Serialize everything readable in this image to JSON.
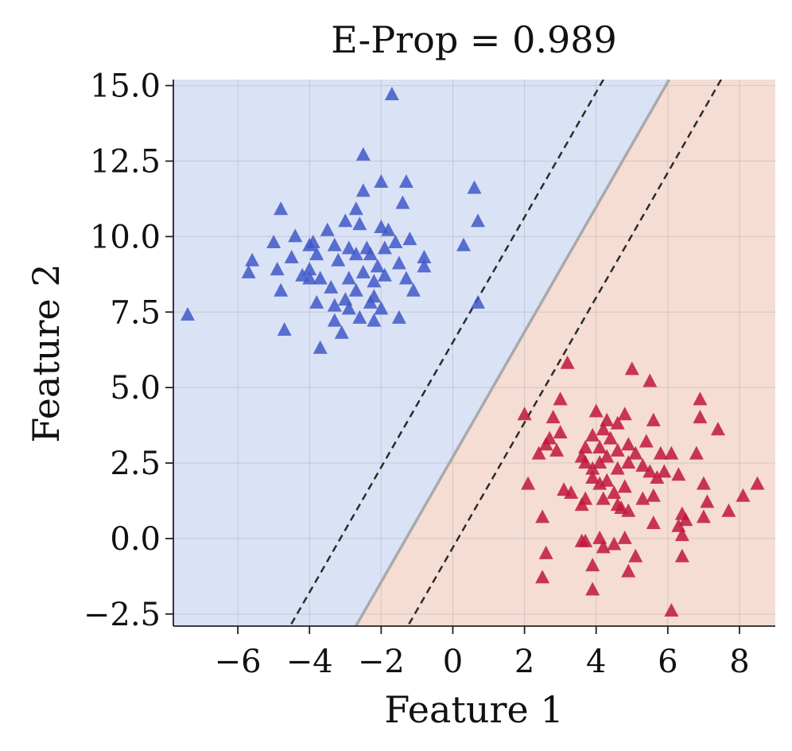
{
  "chart_data": {
    "type": "scatter",
    "title": "E-Prop = 0.989",
    "xlabel": "Feature 1",
    "ylabel": "Feature 2",
    "xlim": [
      -7.8,
      9.0
    ],
    "ylim": [
      -2.9,
      15.2
    ],
    "xticks": [
      -6,
      -4,
      -2,
      0,
      2,
      4,
      6,
      8
    ],
    "xtick_labels": [
      "−6",
      "−4",
      "−2",
      "0",
      "2",
      "4",
      "6",
      "8"
    ],
    "yticks": [
      -2.5,
      0.0,
      2.5,
      5.0,
      7.5,
      10.0,
      12.5,
      15.0
    ],
    "ytick_labels": [
      "−2.5",
      "0.0",
      "2.5",
      "5.0",
      "7.5",
      "10.0",
      "12.5",
      "15.0"
    ],
    "grid": true,
    "marker": "triangle-up",
    "region_colors": {
      "blue": "#dae2f5",
      "red": "#f5ddd4"
    },
    "decision_boundary": {
      "slope": 2.07,
      "intercept": 2.7,
      "color": "#a9a9a9"
    },
    "margins": [
      {
        "slope": 2.07,
        "intercept": 6.5
      },
      {
        "slope": 2.07,
        "intercept": -0.3
      }
    ],
    "series": [
      {
        "color": "#4058c8",
        "points": [
          [
            -1.7,
            14.7
          ],
          [
            -2.5,
            12.7
          ],
          [
            -2.0,
            11.8
          ],
          [
            -1.3,
            11.8
          ],
          [
            -2.5,
            11.5
          ],
          [
            0.6,
            11.6
          ],
          [
            -2.7,
            10.9
          ],
          [
            -1.4,
            11.1
          ],
          [
            -4.8,
            10.9
          ],
          [
            0.7,
            10.5
          ],
          [
            -3.0,
            10.5
          ],
          [
            -2.6,
            10.4
          ],
          [
            -2.0,
            10.3
          ],
          [
            -1.8,
            10.2
          ],
          [
            -3.5,
            10.2
          ],
          [
            -4.4,
            10.0
          ],
          [
            -3.9,
            9.8
          ],
          [
            -5.0,
            9.8
          ],
          [
            -1.2,
            9.9
          ],
          [
            -1.6,
            9.8
          ],
          [
            -3.3,
            9.7
          ],
          [
            -2.9,
            9.6
          ],
          [
            -2.4,
            9.6
          ],
          [
            -4.0,
            9.7
          ],
          [
            0.3,
            9.7
          ],
          [
            -1.9,
            9.6
          ],
          [
            -2.3,
            9.4
          ],
          [
            -2.7,
            9.4
          ],
          [
            -3.8,
            9.4
          ],
          [
            -4.5,
            9.3
          ],
          [
            -5.6,
            9.2
          ],
          [
            -0.8,
            9.3
          ],
          [
            -3.2,
            9.2
          ],
          [
            -1.5,
            9.1
          ],
          [
            -2.1,
            9.0
          ],
          [
            -4.0,
            8.9
          ],
          [
            -4.9,
            8.9
          ],
          [
            -0.8,
            9.0
          ],
          [
            -2.5,
            8.8
          ],
          [
            -2.9,
            8.6
          ],
          [
            -1.9,
            8.7
          ],
          [
            -4.2,
            8.7
          ],
          [
            -5.7,
            8.8
          ],
          [
            -3.7,
            8.6
          ],
          [
            -1.3,
            8.6
          ],
          [
            -4.0,
            8.6
          ],
          [
            -2.2,
            8.5
          ],
          [
            -3.4,
            8.3
          ],
          [
            -2.7,
            8.2
          ],
          [
            -4.8,
            8.2
          ],
          [
            -1.1,
            8.2
          ],
          [
            -2.2,
            8.0
          ],
          [
            -3.0,
            7.9
          ],
          [
            -2.3,
            7.8
          ],
          [
            -3.8,
            7.8
          ],
          [
            -3.3,
            7.7
          ],
          [
            -2.0,
            7.6
          ],
          [
            -2.9,
            7.6
          ],
          [
            0.7,
            7.8
          ],
          [
            -7.4,
            7.4
          ],
          [
            -1.5,
            7.3
          ],
          [
            -2.6,
            7.3
          ],
          [
            -2.2,
            7.2
          ],
          [
            -3.3,
            7.2
          ],
          [
            -4.7,
            6.9
          ],
          [
            -3.1,
            6.8
          ],
          [
            -3.7,
            6.3
          ]
        ]
      },
      {
        "color": "#bf1838",
        "points": [
          [
            3.2,
            5.8
          ],
          [
            5.0,
            5.6
          ],
          [
            5.5,
            5.2
          ],
          [
            3.0,
            4.6
          ],
          [
            6.9,
            4.6
          ],
          [
            4.0,
            4.2
          ],
          [
            4.8,
            4.1
          ],
          [
            2.0,
            4.1
          ],
          [
            4.3,
            3.9
          ],
          [
            2.8,
            4.0
          ],
          [
            5.6,
            3.9
          ],
          [
            6.9,
            4.0
          ],
          [
            7.4,
            3.6
          ],
          [
            4.6,
            3.8
          ],
          [
            4.2,
            3.6
          ],
          [
            3.0,
            3.5
          ],
          [
            3.9,
            3.4
          ],
          [
            4.4,
            3.3
          ],
          [
            5.4,
            3.2
          ],
          [
            2.6,
            3.1
          ],
          [
            2.7,
            3.3
          ],
          [
            4.9,
            3.1
          ],
          [
            3.7,
            3.0
          ],
          [
            4.1,
            3.0
          ],
          [
            2.4,
            2.8
          ],
          [
            2.9,
            2.9
          ],
          [
            4.6,
            2.9
          ],
          [
            5.1,
            2.8
          ],
          [
            5.8,
            2.8
          ],
          [
            6.1,
            2.8
          ],
          [
            3.6,
            2.7
          ],
          [
            4.3,
            2.7
          ],
          [
            6.8,
            2.8
          ],
          [
            3.7,
            2.5
          ],
          [
            4.1,
            2.5
          ],
          [
            4.9,
            2.5
          ],
          [
            5.3,
            2.4
          ],
          [
            3.9,
            2.3
          ],
          [
            4.6,
            2.3
          ],
          [
            5.5,
            2.2
          ],
          [
            5.9,
            2.2
          ],
          [
            3.9,
            2.0
          ],
          [
            4.3,
            1.9
          ],
          [
            5.7,
            2.0
          ],
          [
            6.3,
            2.1
          ],
          [
            2.1,
            1.8
          ],
          [
            4.1,
            1.8
          ],
          [
            4.8,
            1.7
          ],
          [
            7.0,
            1.8
          ],
          [
            8.5,
            1.8
          ],
          [
            3.1,
            1.6
          ],
          [
            3.3,
            1.5
          ],
          [
            4.5,
            1.5
          ],
          [
            5.6,
            1.4
          ],
          [
            3.7,
            1.3
          ],
          [
            4.2,
            1.3
          ],
          [
            5.3,
            1.3
          ],
          [
            7.1,
            1.2
          ],
          [
            8.1,
            1.4
          ],
          [
            3.6,
            1.1
          ],
          [
            4.6,
            1.1
          ],
          [
            4.7,
            1.0
          ],
          [
            4.9,
            0.9
          ],
          [
            7.7,
            0.9
          ],
          [
            6.4,
            0.8
          ],
          [
            6.5,
            0.6
          ],
          [
            2.5,
            0.7
          ],
          [
            5.6,
            0.5
          ],
          [
            7.0,
            0.7
          ],
          [
            6.3,
            0.4
          ],
          [
            6.4,
            0.1
          ],
          [
            4.1,
            0.0
          ],
          [
            4.8,
            0.0
          ],
          [
            3.6,
            -0.1
          ],
          [
            3.7,
            -0.1
          ],
          [
            4.5,
            -0.2
          ],
          [
            4.2,
            -0.3
          ],
          [
            2.6,
            -0.5
          ],
          [
            5.1,
            -0.6
          ],
          [
            6.4,
            -0.6
          ],
          [
            3.9,
            -0.9
          ],
          [
            4.9,
            -1.1
          ],
          [
            2.5,
            -1.3
          ],
          [
            3.9,
            -1.7
          ],
          [
            6.1,
            -2.4
          ]
        ]
      }
    ]
  }
}
